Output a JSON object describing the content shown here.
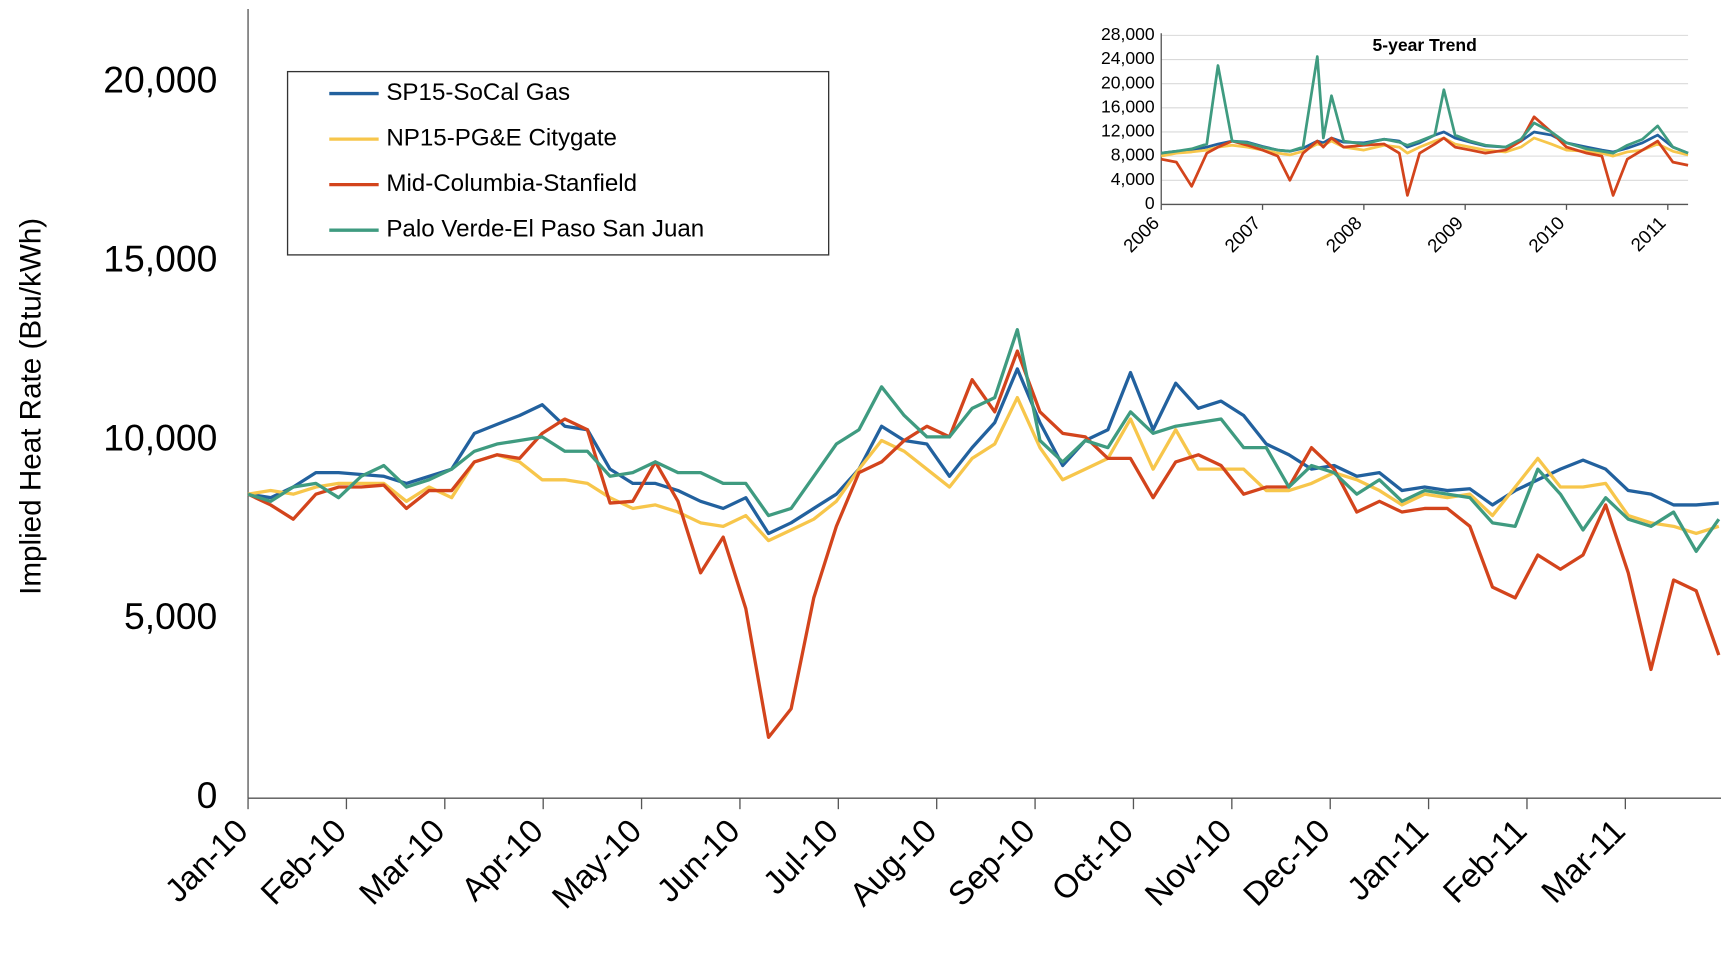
{
  "chart_data": [
    {
      "type": "line",
      "y_label": "Implied Heat Rate (Btu/kWh)",
      "x": [
        0,
        0.23,
        0.46,
        0.69,
        0.92,
        1.15,
        1.38,
        1.61,
        1.84,
        2.07,
        2.3,
        2.53,
        2.76,
        2.99,
        3.22,
        3.45,
        3.68,
        3.91,
        4.14,
        4.37,
        4.6,
        4.83,
        5.06,
        5.29,
        5.52,
        5.75,
        5.98,
        6.21,
        6.44,
        6.67,
        6.9,
        7.13,
        7.36,
        7.59,
        7.82,
        8.05,
        8.28,
        8.51,
        8.74,
        8.97,
        9.2,
        9.43,
        9.66,
        9.89,
        10.12,
        10.35,
        10.58,
        10.81,
        11.04,
        11.27,
        11.5,
        11.73,
        11.96,
        12.19,
        12.42,
        12.65,
        12.88,
        13.11,
        13.34,
        13.57,
        13.8,
        14.03,
        14.26,
        14.49,
        14.72,
        14.95
      ],
      "xlim": [
        0,
        14.95
      ],
      "xticks": [
        {
          "value": 0,
          "label": "Jan-10"
        },
        {
          "value": 1,
          "label": "Feb-10"
        },
        {
          "value": 2,
          "label": "Mar-10"
        },
        {
          "value": 3,
          "label": "Apr-10"
        },
        {
          "value": 4,
          "label": "May-10"
        },
        {
          "value": 5,
          "label": "Jun-10"
        },
        {
          "value": 6,
          "label": "Jul-10"
        },
        {
          "value": 7,
          "label": "Aug-10"
        },
        {
          "value": 8,
          "label": "Sep-10"
        },
        {
          "value": 9,
          "label": "Oct-10"
        },
        {
          "value": 10,
          "label": "Nov-10"
        },
        {
          "value": 11,
          "label": "Dec-10"
        },
        {
          "value": 12,
          "label": "Jan-11"
        },
        {
          "value": 13,
          "label": "Feb-11"
        },
        {
          "value": 14,
          "label": "Mar-11"
        }
      ],
      "ylim": [
        0,
        22000
      ],
      "yticks": [
        0,
        {
          "value": 5000,
          "label": "5,000"
        },
        {
          "value": 10000,
          "label": "10,000"
        },
        {
          "value": 15000,
          "label": "15,000"
        },
        {
          "value": 20000,
          "label": "20,000"
        }
      ],
      "grid": false,
      "legend": "upper left",
      "series": [
        {
          "name": "SP15-SoCal Gas",
          "color": "#22619e",
          "values": [
            8500,
            8400,
            8700,
            9100,
            9100,
            9050,
            9000,
            8800,
            9000,
            9200,
            10200,
            10450,
            10700,
            11000,
            10400,
            10300,
            9200,
            8800,
            8800,
            8600,
            8300,
            8100,
            8400,
            7400,
            7700,
            8100,
            8500,
            9200,
            10400,
            10000,
            9900,
            9000,
            9800,
            10500,
            12000,
            10500,
            9300,
            10000,
            10300,
            11900,
            10300,
            11600,
            10900,
            11100,
            10700,
            9900,
            9600,
            9200,
            9300,
            9000,
            9100,
            8600,
            8700,
            8600,
            8650,
            8200,
            8600,
            8900,
            9200,
            9450,
            9200,
            8600,
            8500,
            8200,
            8200,
            8250
          ]
        },
        {
          "name": "NP15-PG&E Citygate",
          "color": "#f7c64b",
          "values": [
            8500,
            8600,
            8500,
            8700,
            8800,
            8800,
            8800,
            8300,
            8700,
            8400,
            9400,
            9600,
            9400,
            8900,
            8900,
            8800,
            8400,
            8100,
            8200,
            8000,
            7700,
            7600,
            7900,
            7200,
            7500,
            7800,
            8300,
            9200,
            10000,
            9700,
            9200,
            8700,
            9500,
            9900,
            11200,
            9800,
            8900,
            9200,
            9500,
            10600,
            9200,
            10300,
            9200,
            9200,
            9200,
            8600,
            8600,
            8800,
            9100,
            8900,
            8600,
            8200,
            8500,
            8400,
            8500,
            7900,
            8700,
            9500,
            8700,
            8700,
            8800,
            7900,
            7700,
            7600,
            7400,
            7600
          ]
        },
        {
          "name": "Mid-Columbia-Stanfield",
          "color": "#d3441c",
          "values": [
            8500,
            8200,
            7800,
            8500,
            8700,
            8700,
            8750,
            8100,
            8600,
            8600,
            9400,
            9600,
            9500,
            10200,
            10600,
            10300,
            8250,
            8300,
            9400,
            8300,
            6300,
            7300,
            5300,
            1700,
            2500,
            5600,
            7600,
            9100,
            9400,
            10000,
            10400,
            10100,
            11700,
            10800,
            12500,
            10800,
            10200,
            10100,
            9500,
            9500,
            8400,
            9400,
            9600,
            9300,
            8500,
            8700,
            8700,
            9800,
            9200,
            8000,
            8300,
            8000,
            8100,
            8100,
            7600,
            5900,
            5600,
            6800,
            6400,
            6800,
            8200,
            6300,
            3600,
            6100,
            5800,
            4000
          ]
        },
        {
          "name": "Palo Verde-El Paso San Juan",
          "color": "#3f9b80",
          "values": [
            8500,
            8300,
            8700,
            8800,
            8400,
            9000,
            9300,
            8700,
            8900,
            9200,
            9700,
            9900,
            10000,
            10100,
            9700,
            9700,
            9000,
            9100,
            9400,
            9100,
            9100,
            8800,
            8800,
            7900,
            8100,
            9000,
            9900,
            10300,
            11500,
            10700,
            10100,
            10100,
            10900,
            11200,
            13100,
            10000,
            9400,
            10000,
            9800,
            10800,
            10200,
            10400,
            10500,
            10600,
            9800,
            9800,
            8700,
            9300,
            9100,
            8500,
            8900,
            8300,
            8600,
            8500,
            8400,
            7700,
            7600,
            9200,
            8500,
            7500,
            8400,
            7800,
            7600,
            8000,
            6900,
            7800
          ]
        }
      ]
    },
    {
      "type": "line",
      "title": "5-year Trend",
      "x": [
        2006,
        2006.15,
        2006.3,
        2006.45,
        2006.56,
        2006.7,
        2006.85,
        2007,
        2007.15,
        2007.27,
        2007.4,
        2007.54,
        2007.6,
        2007.68,
        2007.8,
        2008,
        2008.2,
        2008.35,
        2008.43,
        2008.55,
        2008.7,
        2008.79,
        2008.9,
        2009.05,
        2009.2,
        2009.4,
        2009.55,
        2009.68,
        2009.85,
        2010,
        2010.2,
        2010.35,
        2010.46,
        2010.6,
        2010.75,
        2010.9,
        2011.05,
        2011.2
      ],
      "xlim": [
        2006,
        2011.2
      ],
      "xticks": [
        2006,
        2007,
        2008,
        2009,
        2010,
        2011
      ],
      "ylim": [
        0,
        28000
      ],
      "yticks": [
        0,
        {
          "value": 4000,
          "label": "4,000"
        },
        {
          "value": 8000,
          "label": "8,000"
        },
        {
          "value": 12000,
          "label": "12,000"
        },
        {
          "value": 16000,
          "label": "16,000"
        },
        {
          "value": 20000,
          "label": "20,000"
        },
        {
          "value": 24000,
          "label": "24,000"
        },
        {
          "value": 28000,
          "label": "28,000"
        }
      ],
      "grid": true,
      "series": [
        {
          "color": "#22619e",
          "values": [
            8500,
            8800,
            9000,
            9500,
            10000,
            10500,
            10300,
            9600,
            9000,
            8800,
            9300,
            10500,
            10200,
            11000,
            10300,
            10200,
            10800,
            10500,
            9500,
            10200,
            11500,
            12000,
            11000,
            10300,
            9700,
            9500,
            10500,
            12000,
            11500,
            10200,
            9500,
            9000,
            8700,
            9300,
            10200,
            11500,
            9500,
            8500
          ]
        },
        {
          "color": "#f7c64b",
          "values": [
            8000,
            8500,
            8700,
            9000,
            9500,
            9800,
            9500,
            9000,
            8500,
            8200,
            8800,
            10000,
            9800,
            10500,
            9500,
            9000,
            9800,
            9500,
            8500,
            9500,
            10500,
            11000,
            10000,
            9500,
            9000,
            8700,
            9500,
            11000,
            10000,
            9000,
            8800,
            8500,
            8000,
            8700,
            9000,
            10000,
            8800,
            8200
          ]
        },
        {
          "color": "#d3441c",
          "values": [
            7500,
            7000,
            3000,
            8500,
            9500,
            10500,
            9800,
            9000,
            8000,
            4000,
            8500,
            10500,
            9500,
            11000,
            9500,
            9800,
            10000,
            8500,
            1500,
            8500,
            10000,
            11000,
            9500,
            9000,
            8500,
            9000,
            10500,
            14500,
            12000,
            9500,
            8500,
            8000,
            1500,
            7500,
            9000,
            10500,
            7000,
            6500
          ]
        },
        {
          "color": "#3f9b80",
          "values": [
            8500,
            8800,
            9200,
            10000,
            23000,
            10500,
            10200,
            9500,
            9000,
            8800,
            9500,
            24500,
            11000,
            18000,
            10500,
            10000,
            10800,
            10300,
            9800,
            10500,
            11500,
            19000,
            11500,
            10500,
            9800,
            9500,
            10800,
            13500,
            12000,
            10200,
            9200,
            8800,
            8500,
            9800,
            10800,
            13000,
            9500,
            8500
          ]
        }
      ]
    }
  ]
}
